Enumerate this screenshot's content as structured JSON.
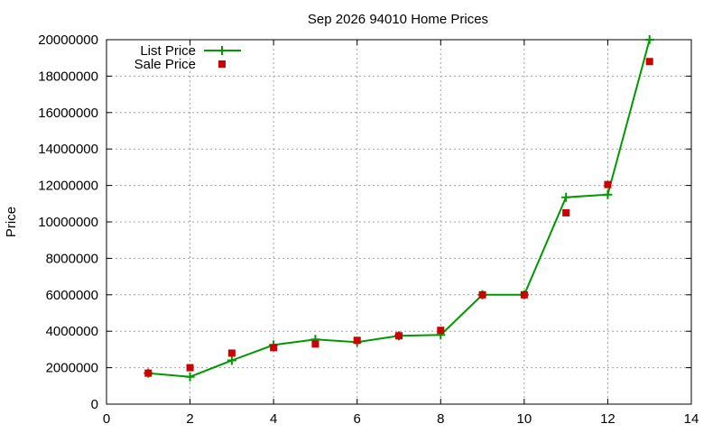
{
  "chart_data": {
    "type": "line",
    "title": "Sep 2026 94010 Home Prices",
    "xlabel": "",
    "ylabel": "Price",
    "xlim": [
      0,
      14
    ],
    "ylim": [
      0,
      20000000
    ],
    "xticks": [
      0,
      2,
      4,
      6,
      8,
      10,
      12,
      14
    ],
    "yticks": [
      0,
      2000000,
      4000000,
      6000000,
      8000000,
      10000000,
      12000000,
      14000000,
      16000000,
      18000000,
      20000000
    ],
    "x_tick_labels": [
      "0",
      "2",
      "4",
      "6",
      "8",
      "10",
      "12",
      "14"
    ],
    "y_tick_labels": [
      "0",
      "2000000",
      "4000000",
      "6000000",
      "8000000",
      "10000000",
      "12000000",
      "14000000",
      "16000000",
      "18000000",
      "20000000"
    ],
    "grid": true,
    "legend_position": "top-left",
    "series": [
      {
        "name": "List Price",
        "style": "lines-points",
        "marker": "plus",
        "color": "#009900",
        "x": [
          1,
          2,
          3,
          4,
          5,
          6,
          7,
          8,
          9,
          10,
          11,
          12,
          13
        ],
        "y": [
          1700000,
          1500000,
          2400000,
          3250000,
          3550000,
          3400000,
          3750000,
          3800000,
          6000000,
          6000000,
          11350000,
          11500000,
          20000000
        ]
      },
      {
        "name": "Sale Price",
        "style": "points",
        "marker": "square",
        "color": "#cc0000",
        "x": [
          1,
          2,
          3,
          4,
          5,
          6,
          7,
          8,
          9,
          10,
          11,
          12,
          13
        ],
        "y": [
          1700000,
          2000000,
          2800000,
          3100000,
          3300000,
          3500000,
          3750000,
          4050000,
          6000000,
          6000000,
          10500000,
          12050000,
          18800000
        ]
      }
    ]
  }
}
